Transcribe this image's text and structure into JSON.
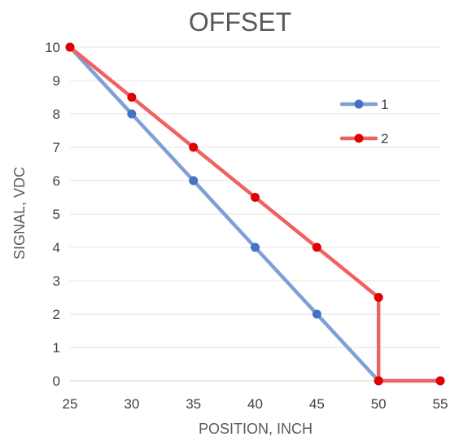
{
  "chart_data": {
    "type": "line",
    "title": "OFFSET",
    "xlabel": "POSITION, INCH",
    "ylabel": "SIGNAL, VDC",
    "xlim": [
      25,
      55
    ],
    "ylim": [
      0,
      10
    ],
    "x_ticks": [
      "25",
      "30",
      "35",
      "40",
      "45",
      "50",
      "55"
    ],
    "y_ticks": [
      "0",
      "1",
      "2",
      "3",
      "4",
      "5",
      "6",
      "7",
      "8",
      "9",
      "10"
    ],
    "grid": "horizontal",
    "legend_position": "top-right",
    "series": [
      {
        "name": "1",
        "color": "#7f9fd6",
        "marker_color": "#4472c4",
        "points": [
          [
            25,
            10
          ],
          [
            30,
            8
          ],
          [
            35,
            6
          ],
          [
            40,
            4
          ],
          [
            45,
            2
          ],
          [
            50,
            0
          ],
          [
            55,
            0
          ]
        ]
      },
      {
        "name": "2",
        "color": "#f06262",
        "marker_color": "#e00000",
        "points": [
          [
            25,
            10
          ],
          [
            30,
            8.5
          ],
          [
            35,
            7
          ],
          [
            40,
            5.5
          ],
          [
            45,
            4
          ],
          [
            50,
            2.5
          ],
          [
            50,
            0
          ],
          [
            55,
            0
          ]
        ]
      }
    ]
  }
}
